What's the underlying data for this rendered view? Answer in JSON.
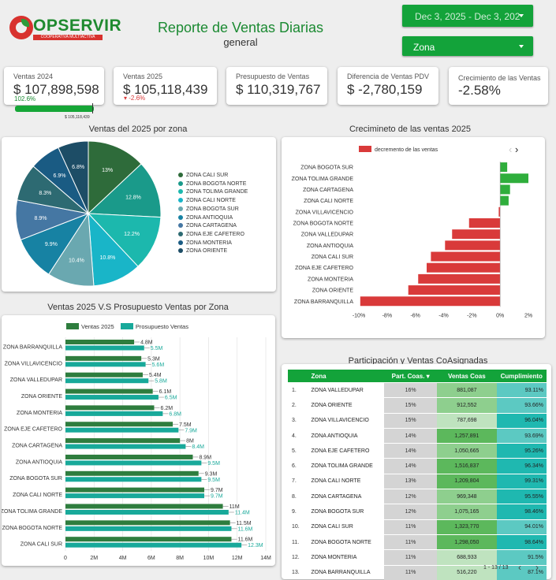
{
  "header": {
    "logo_text": "OPSERVIR",
    "logo_sub": "COOPERATIVA MULTIACTIVA",
    "title": "Reporte de Ventas Diarias",
    "subtitle": "general",
    "date_range": "Dec 3, 2025 - Dec 3, 202",
    "zone_select": "Zona"
  },
  "kpis": [
    {
      "label": "Ventas 2024",
      "value": "$ 107,898,598",
      "sub": "102.6%",
      "bar_fraction": 1.0,
      "bar_caption": "$ 105,118,439"
    },
    {
      "label": "Ventas 2025",
      "value": "$ 105,118,439",
      "delta": "-2.6%"
    },
    {
      "label": "Presupuesto de Ventas",
      "value": "$ 110,319,767"
    },
    {
      "label": "Diferencia de Ventas PDV",
      "value": "$ -2,780,159"
    },
    {
      "label": "Crecimiento de las Ventas",
      "value": "-2.58%"
    }
  ],
  "pie_title": "Ventas del 2025 por zona",
  "growth_title": "Crecimineto de las ventas 2025",
  "bar_title": "Ventas 2025 V.S Prosupuesto Ventas por Zona",
  "table_title": "Participación y Ventas CoAsignadas",
  "pagination": "1 - 13 / 13",
  "colors": {
    "green": "#13a33a",
    "red": "#d93a3a",
    "sales": "#2e7d3e",
    "budget": "#18a99a"
  },
  "chart_data": [
    {
      "type": "pie",
      "labels": [
        "ZONA CALI SUR",
        "ZONA BOGOTA NORTE",
        "ZONA TOLIMA GRANDE",
        "ZONA CALI NORTE",
        "ZONA BOGOTA SUR",
        "ZONA ANTIOQUIA",
        "ZONA CARTAGENA",
        "ZONA EJE CAFETERO",
        "ZONA MONTERIA",
        "ZONA ORIENTE"
      ],
      "values": [
        13,
        12.8,
        12.2,
        10.8,
        10.4,
        9.9,
        8.9,
        8.3,
        6.9,
        6.8
      ],
      "value_labels": [
        "13%",
        "12.8%",
        "12.2%",
        "10.8%",
        "10.4%",
        "9.9%",
        "8.9%",
        "8.3%",
        "6.9%",
        "6.8%"
      ],
      "colors": [
        "#2e6b3a",
        "#1a9a8a",
        "#1cb8ad",
        "#19b5c8",
        "#6aa8b0",
        "#1782a3",
        "#4577a3",
        "#2d6a72",
        "#1a5b83",
        "#1d4d66"
      ]
    },
    {
      "type": "bar",
      "legend": "decremento de las ventas",
      "categories": [
        "ZONA BOGOTA SUR",
        "ZONA TOLIMA GRANDE",
        "ZONA CARTAGENA",
        "ZONA CALI NORTE",
        "ZONA VILLAVICENCIO",
        "ZONA BOGOTA NORTE",
        "ZONA VALLEDUPAR",
        "ZONA ANTIOQUIA",
        "ZONA CALI SUR",
        "ZONA EJE CAFETERO",
        "ZONA MONTERIA",
        "ZONA ORIENTE",
        "ZONA BARRANQUILLA"
      ],
      "values": [
        0.5,
        2.0,
        0.7,
        0.6,
        -0.1,
        -2.2,
        -3.4,
        -3.9,
        -4.9,
        -5.2,
        -5.8,
        -6.5,
        -9.9
      ],
      "xticks": [
        "-10%",
        "-8%",
        "-6%",
        "-4%",
        "-2%",
        "0%",
        "2%"
      ],
      "xlim": [
        -10,
        2
      ]
    },
    {
      "type": "bar",
      "series": [
        {
          "name": "Ventas 2025",
          "labels": [
            "4.8M",
            "5.3M",
            "5.4M",
            "6.1M",
            "6.2M",
            "7.5M",
            "8M",
            "8.9M",
            "9.3M",
            "9.7M",
            "11M",
            "11.5M",
            "11.6M"
          ],
          "values": [
            4.8,
            5.3,
            5.4,
            6.1,
            6.2,
            7.5,
            8,
            8.9,
            9.3,
            9.7,
            11,
            11.5,
            11.6
          ]
        },
        {
          "name": "Prosupuesto Ventas",
          "labels": [
            "5.5M",
            "5.6M",
            "5.8M",
            "6.5M",
            "6.8M",
            "7.9M",
            "8.4M",
            "9.5M",
            "9.5M",
            "9.7M",
            "11.4M",
            "11.6M",
            "12.3M"
          ],
          "values": [
            5.5,
            5.6,
            5.8,
            6.5,
            6.8,
            7.9,
            8.4,
            9.5,
            9.5,
            9.7,
            11.4,
            11.6,
            12.3
          ]
        }
      ],
      "categories": [
        "ZONA BARRANQUILLA",
        "ZONA VILLAVICENCIO",
        "ZONA VALLEDUPAR",
        "ZONA ORIENTE",
        "ZONA MONTERIA",
        "ZONA EJE CAFETERO",
        "ZONA CARTAGENA",
        "ZONA ANTIOQUIA",
        "ZONA BOGOTA SUR",
        "ZONA CALI NORTE",
        "ZONA TOLIMA GRANDE",
        "ZONA BOGOTA NORTE",
        "ZONA CALI SUR"
      ],
      "xticks": [
        "0",
        "2M",
        "4M",
        "6M",
        "8M",
        "10M",
        "12M",
        "14M"
      ],
      "xlim": [
        0,
        14
      ]
    },
    {
      "type": "table",
      "columns": [
        "Zona",
        "Part. Coas. ▾",
        "Ventas Coas",
        "Cumplimiento"
      ],
      "rows": [
        [
          "1.",
          "ZONA VALLEDUPAR",
          "16%",
          "881,087",
          "93.11%"
        ],
        [
          "2.",
          "ZONA ORIENTE",
          "15%",
          "912,552",
          "93.66%"
        ],
        [
          "3.",
          "ZONA VILLAVICENCIO",
          "15%",
          "787,698",
          "96.04%"
        ],
        [
          "4.",
          "ZONA ANTIOQUIA",
          "14%",
          "1,257,891",
          "93.69%"
        ],
        [
          "5.",
          "ZONA EJE CAFETERO",
          "14%",
          "1,050,665",
          "95.26%"
        ],
        [
          "6.",
          "ZONA TOLIMA GRANDE",
          "14%",
          "1,516,837",
          "96.34%"
        ],
        [
          "7.",
          "ZONA CALI NORTE",
          "13%",
          "1,209,804",
          "99.31%"
        ],
        [
          "8.",
          "ZONA CARTAGENA",
          "12%",
          "969,348",
          "95.55%"
        ],
        [
          "9.",
          "ZONA BOGOTA SUR",
          "12%",
          "1,075,165",
          "98.46%"
        ],
        [
          "10.",
          "ZONA CALI SUR",
          "11%",
          "1,323,770",
          "94.01%"
        ],
        [
          "11.",
          "ZONA BOGOTA NORTE",
          "11%",
          "1,298,050",
          "98.64%"
        ],
        [
          "12.",
          "ZONA MONTERIA",
          "11%",
          "688,933",
          "91.5%"
        ],
        [
          "13.",
          "ZONA BARRANQUILLA",
          "11%",
          "516,220",
          "87.1%"
        ]
      ]
    }
  ]
}
